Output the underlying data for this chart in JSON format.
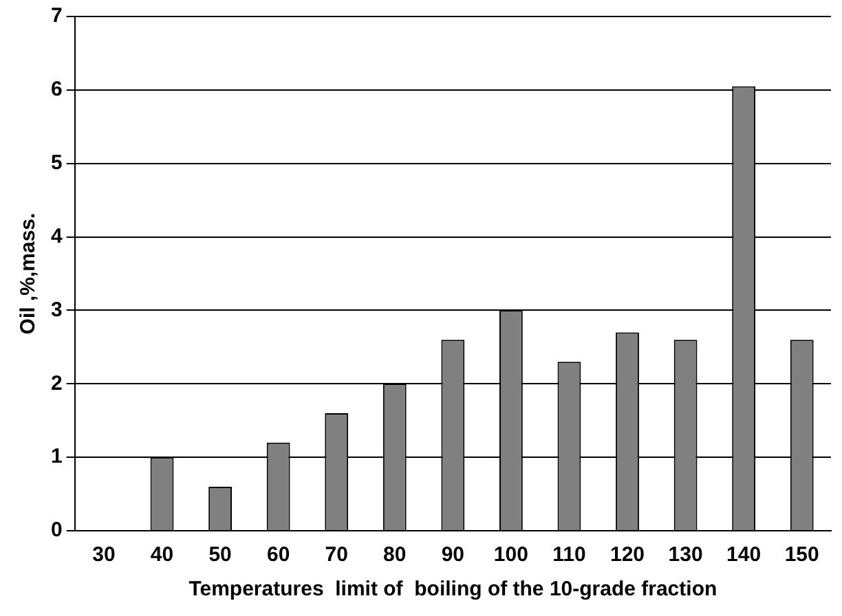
{
  "chart_data": {
    "type": "bar",
    "xlabel": "Temperatures  limit of  boiling of the 10-grade fraction",
    "ylabel": "Oil ,%,mass.",
    "categories": [
      "30",
      "40",
      "50",
      "60",
      "70",
      "80",
      "90",
      "100",
      "110",
      "120",
      "130",
      "140",
      "150"
    ],
    "values": [
      0,
      1.0,
      0.6,
      1.2,
      1.6,
      2.0,
      2.6,
      3.0,
      2.3,
      2.7,
      2.6,
      6.05,
      2.6
    ],
    "color": "#808080",
    "ylim": [
      0,
      7
    ],
    "yticks": [
      0,
      1,
      2,
      3,
      4,
      5,
      6,
      7
    ],
    "grid": "y",
    "legend": false
  }
}
